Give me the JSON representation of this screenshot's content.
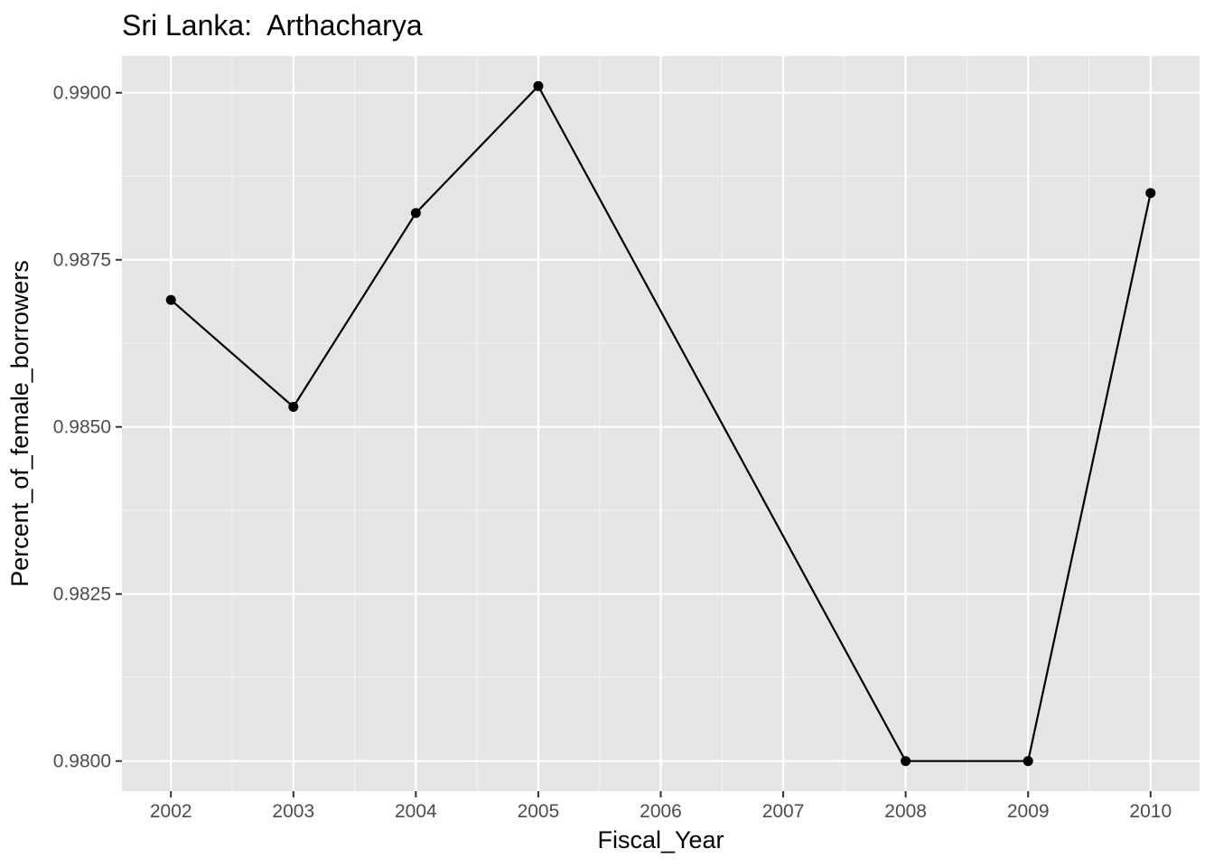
{
  "chart_data": {
    "type": "line",
    "title": "Sri Lanka:  Arthacharya",
    "xlabel": "Fiscal_Year",
    "ylabel": "Percent_of_female_borrowers",
    "x": [
      2002,
      2003,
      2004,
      2005,
      2008,
      2009,
      2010
    ],
    "values": [
      0.9869,
      0.9853,
      0.9882,
      0.9901,
      0.98,
      0.98,
      0.9885
    ],
    "x_ticks": [
      2002,
      2003,
      2004,
      2005,
      2006,
      2007,
      2008,
      2009,
      2010
    ],
    "x_tick_labels": [
      "2002",
      "2003",
      "2004",
      "2005",
      "2006",
      "2007",
      "2008",
      "2009",
      "2010"
    ],
    "y_ticks": [
      0.98,
      0.9825,
      0.985,
      0.9875,
      0.99
    ],
    "y_tick_labels": [
      "0.9800",
      "0.9825",
      "0.9850",
      "0.9875",
      "0.9900"
    ],
    "xlim": [
      2001.6,
      2010.4
    ],
    "ylim": [
      0.97955,
      0.99055
    ],
    "grid": true,
    "legend": "none",
    "colors": {
      "panel_background": "#e5e5e5",
      "grid_major": "#ffffff",
      "grid_minor": "#f2f2f2",
      "series": "#000000",
      "tick_label": "#4d4d4d",
      "tick_mark": "#333333"
    }
  }
}
